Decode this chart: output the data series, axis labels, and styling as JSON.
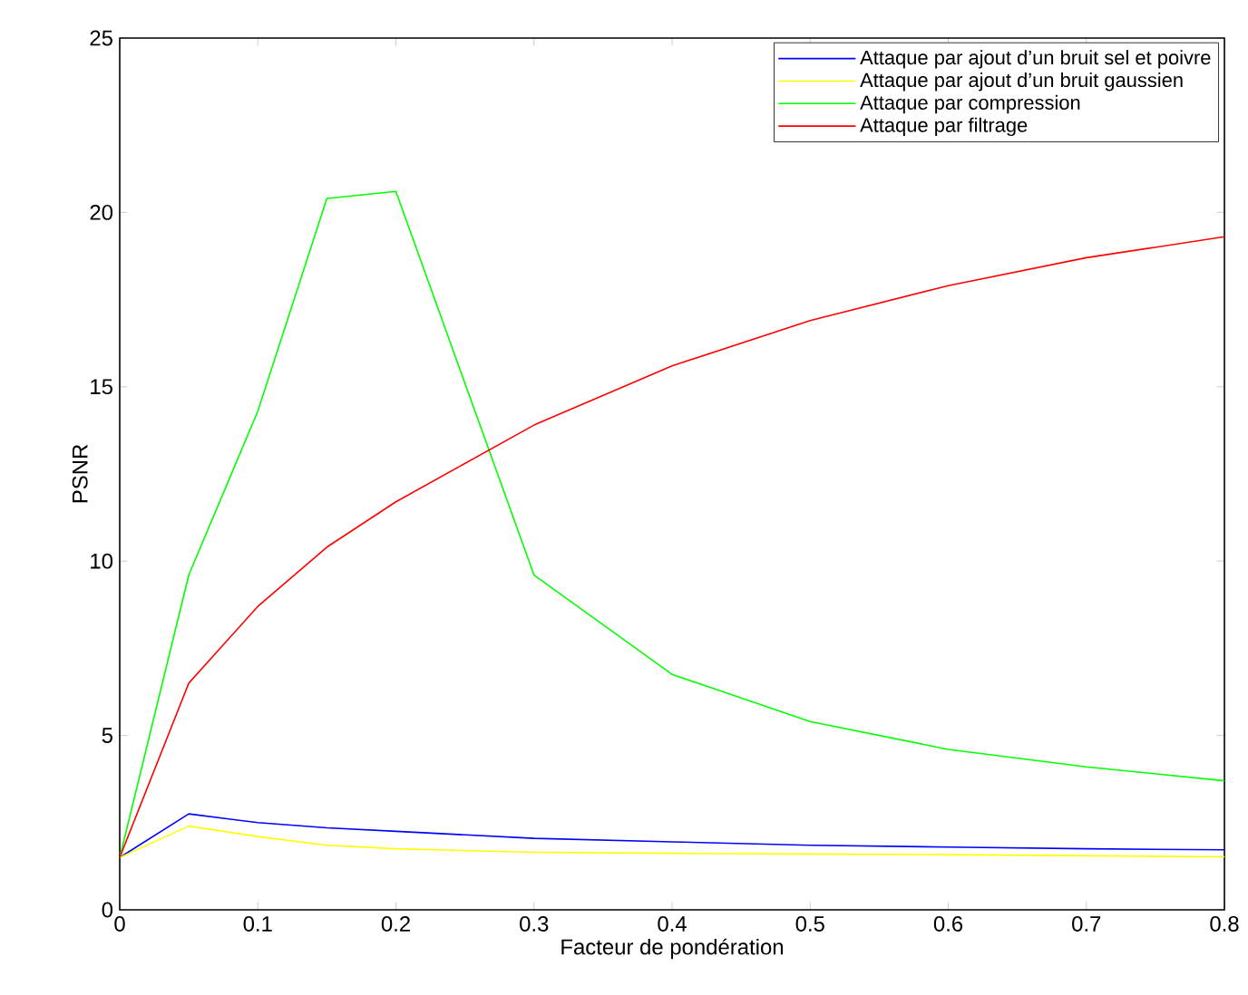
{
  "chart_data": {
    "type": "line",
    "xlabel": "Facteur de pondération",
    "ylabel": "PSNR",
    "x": [
      0,
      0.05,
      0.1,
      0.15,
      0.2,
      0.3,
      0.4,
      0.5,
      0.6,
      0.7,
      0.8
    ],
    "series": [
      {
        "name": "Attaque par ajout d’un bruit sel et poivre",
        "color": "#0000ff",
        "values": [
          1.5,
          2.75,
          2.5,
          2.35,
          2.25,
          2.05,
          1.95,
          1.85,
          1.8,
          1.75,
          1.72
        ]
      },
      {
        "name": "Attaque par ajout d’un bruit gaussien",
        "color": "#ffff00",
        "values": [
          1.5,
          2.4,
          2.1,
          1.85,
          1.75,
          1.65,
          1.62,
          1.6,
          1.58,
          1.55,
          1.52
        ]
      },
      {
        "name": "Attaque par compression",
        "color": "#00ff00",
        "values": [
          1.5,
          9.6,
          14.3,
          20.4,
          20.6,
          9.6,
          6.75,
          5.4,
          4.6,
          4.1,
          3.7
        ]
      },
      {
        "name": "Attaque par filtrage",
        "color": "#ff0000",
        "values": [
          1.5,
          6.5,
          8.7,
          10.4,
          11.7,
          13.9,
          15.6,
          16.9,
          17.9,
          18.7,
          19.3
        ]
      }
    ],
    "xlim": [
      0,
      0.8
    ],
    "ylim": [
      0,
      25
    ],
    "xticks": [
      0,
      0.1,
      0.2,
      0.3,
      0.4,
      0.5,
      0.6,
      0.7,
      0.8
    ],
    "yticks": [
      0,
      5,
      10,
      15,
      20,
      25
    ],
    "grid": false,
    "legend": "top right",
    "marker": "none",
    "line_style": "solid"
  }
}
